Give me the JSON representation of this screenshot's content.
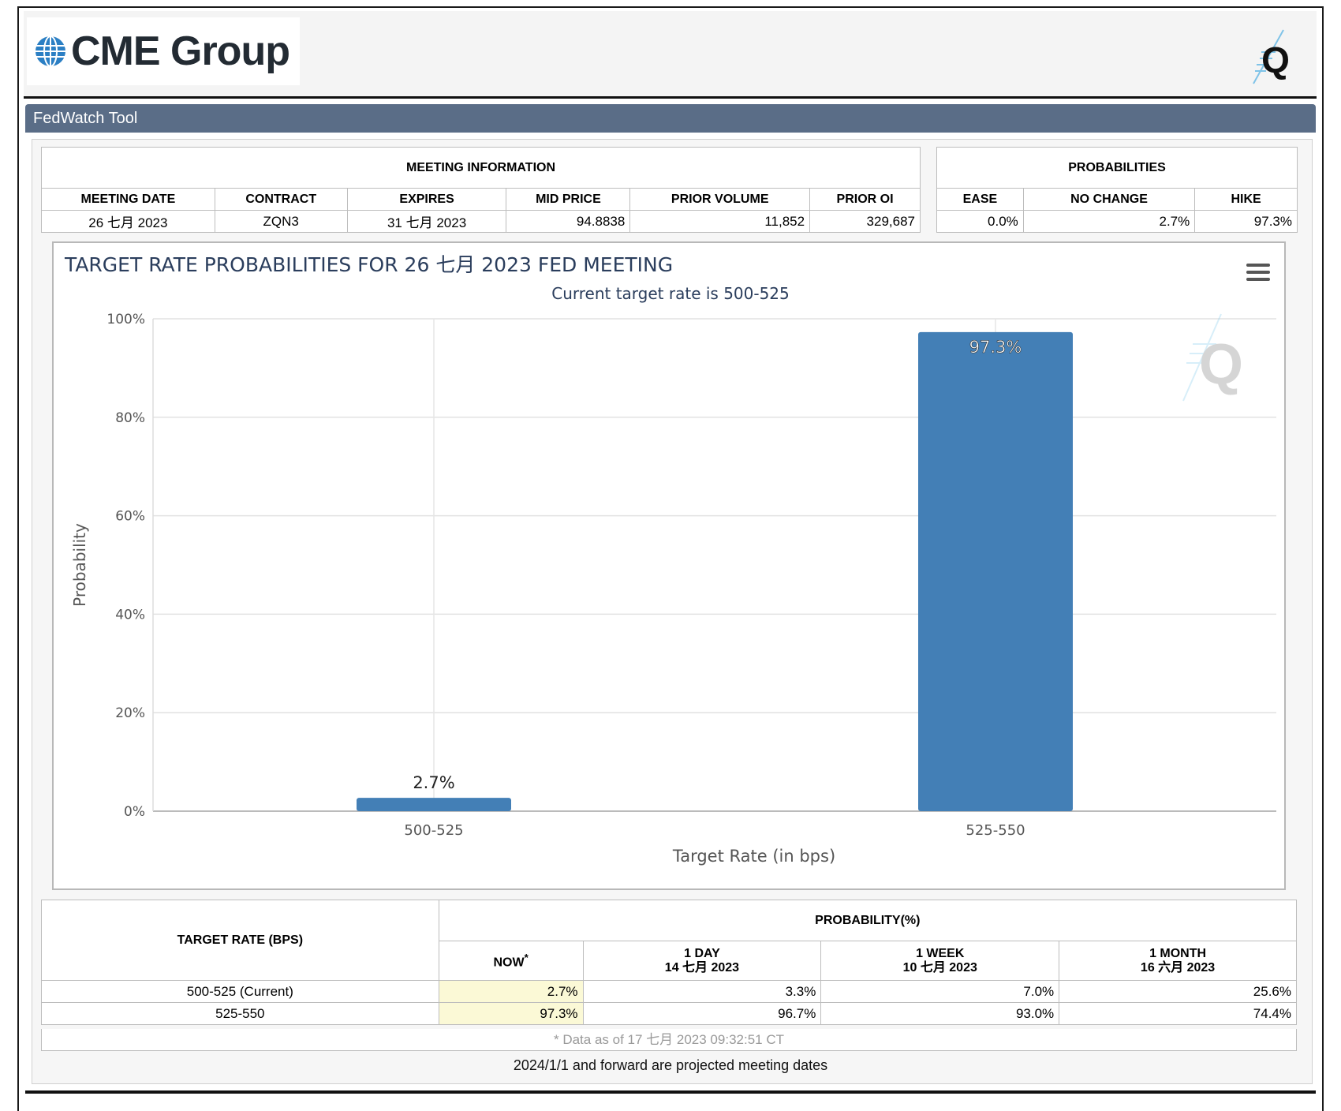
{
  "header": {
    "brand": "CME Group",
    "right_logo": "Q"
  },
  "toolbar": {
    "title": "FedWatch Tool"
  },
  "meeting_info": {
    "section_title": "MEETING INFORMATION",
    "columns": [
      "MEETING DATE",
      "CONTRACT",
      "EXPIRES",
      "MID PRICE",
      "PRIOR VOLUME",
      "PRIOR OI"
    ],
    "row": [
      "26 七月 2023",
      "ZQN3",
      "31 七月 2023",
      "94.8838",
      "11,852",
      "329,687"
    ]
  },
  "probabilities": {
    "section_title": "PROBABILITIES",
    "columns": [
      "EASE",
      "NO CHANGE",
      "HIKE"
    ],
    "row": [
      "0.0%",
      "2.7%",
      "97.3%"
    ]
  },
  "chart": {
    "title": "TARGET RATE PROBABILITIES FOR 26 七月 2023 FED MEETING",
    "subtitle": "Current target rate is 500-525",
    "menu_icon": "hamburger-menu-icon"
  },
  "chart_data": {
    "type": "bar",
    "title": "TARGET RATE PROBABILITIES FOR 26 七月 2023 FED MEETING",
    "subtitle": "Current target rate is 500-525",
    "categories": [
      "500-525",
      "525-550"
    ],
    "values": [
      2.7,
      97.3
    ],
    "data_labels": [
      "2.7%",
      "97.3%"
    ],
    "xlabel": "Target Rate (in bps)",
    "ylabel": "Probability",
    "ylim": [
      0,
      100
    ],
    "yticks": [
      "0%",
      "20%",
      "40%",
      "60%",
      "80%",
      "100%"
    ],
    "grid": true,
    "bar_color": "#437fb6"
  },
  "prob_table": {
    "rate_header": "TARGET RATE (BPS)",
    "prob_header": "PROBABILITY(%)",
    "col_now": "NOW",
    "col_now_mark": "*",
    "col_1day": "1 DAY",
    "col_1day_date": "14 七月 2023",
    "col_1week": "1 WEEK",
    "col_1week_date": "10 七月 2023",
    "col_1month": "1 MONTH",
    "col_1month_date": "16 六月 2023",
    "rows": [
      {
        "rate": "500-525 (Current)",
        "now": "2.7%",
        "day": "3.3%",
        "week": "7.0%",
        "month": "25.6%"
      },
      {
        "rate": "525-550",
        "now": "97.3%",
        "day": "96.7%",
        "week": "93.0%",
        "month": "74.4%"
      }
    ],
    "footnote": "* Data as of 17 七月 2023 09:32:51 CT"
  },
  "projected_note": "2024/1/1 and forward are projected meeting dates"
}
